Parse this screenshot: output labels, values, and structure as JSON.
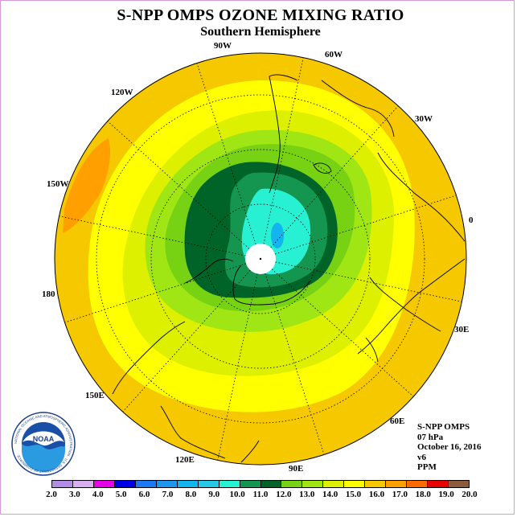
{
  "header": {
    "title": "S-NPP OMPS OZONE MIXING RATIO",
    "subtitle": "Southern Hemisphere"
  },
  "longitude_labels": [
    {
      "text": "90W"
    },
    {
      "text": "60W"
    },
    {
      "text": "120W"
    },
    {
      "text": "30W"
    },
    {
      "text": "150W"
    },
    {
      "text": "0"
    },
    {
      "text": "180"
    },
    {
      "text": "30E"
    },
    {
      "text": "150E"
    },
    {
      "text": "60E"
    },
    {
      "text": "120E"
    },
    {
      "text": "90E"
    }
  ],
  "info": {
    "instrument": "S-NPP OMPS",
    "level": "07 hPa",
    "date": "October 16, 2016",
    "version": "v6",
    "units": "PPM"
  },
  "logo": {
    "text": "NOAA",
    "ring_text": "NATIONAL OCEANIC AND ATMOSPHERIC ADMINISTRATION · U.S. DEPARTMENT OF COMMERCE"
  },
  "colorbar": {
    "ticks": [
      "2.0",
      "3.0",
      "4.0",
      "5.0",
      "6.0",
      "7.0",
      "8.0",
      "9.0",
      "10.0",
      "11.0",
      "12.0",
      "13.0",
      "14.0",
      "15.0",
      "16.0",
      "17.0",
      "18.0",
      "19.0",
      "20.0"
    ],
    "colors": [
      "#b38ce6",
      "#d8b0f0",
      "#e600e6",
      "#0000e6",
      "#1e78f0",
      "#1e96f0",
      "#14b4f0",
      "#28c8e6",
      "#28f0d2",
      "#149650",
      "#006428",
      "#78d214",
      "#a0e614",
      "#dcf000",
      "#ffff00",
      "#f5c800",
      "#ffa000",
      "#ff6a00",
      "#e60000",
      "#8c5a3c"
    ]
  }
}
